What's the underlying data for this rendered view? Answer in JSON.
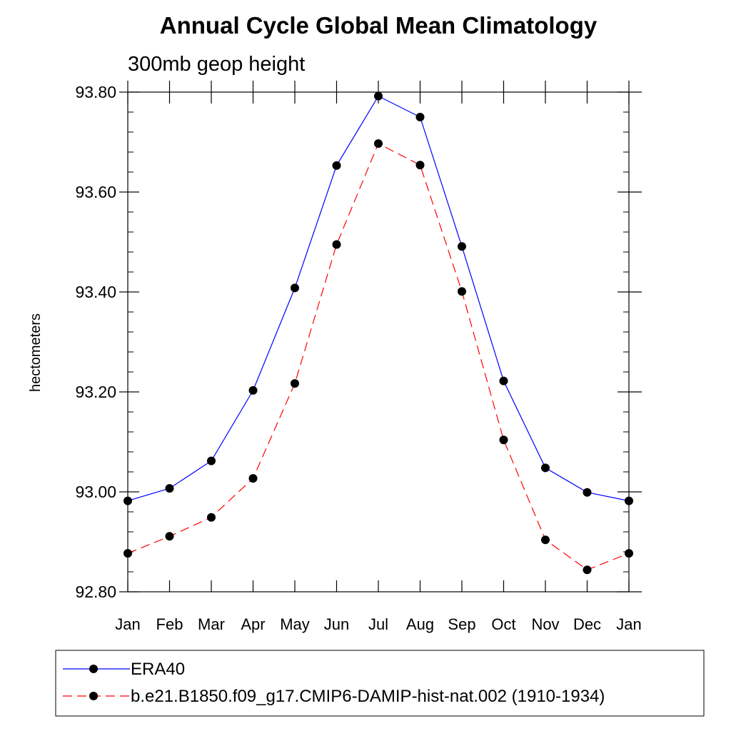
{
  "chart_data": {
    "type": "line",
    "title": "Annual Cycle Global Mean Climatology",
    "subtitle": "300mb geop height",
    "xlabel": "",
    "ylabel": "hectometers",
    "categories": [
      "Jan",
      "Feb",
      "Mar",
      "Apr",
      "May",
      "Jun",
      "Jul",
      "Aug",
      "Sep",
      "Oct",
      "Nov",
      "Dec",
      "Jan"
    ],
    "ylim": [
      92.8,
      93.8
    ],
    "yticks": [
      "92.80",
      "93.00",
      "93.20",
      "93.40",
      "93.60",
      "93.80"
    ],
    "grid": false,
    "legend_position": "bottom",
    "series": [
      {
        "name": "ERA40",
        "color": "#0000ff",
        "dash": "solid",
        "marker": "filled-circle",
        "values": [
          92.982,
          93.007,
          93.062,
          93.203,
          93.408,
          93.653,
          93.792,
          93.75,
          93.491,
          93.222,
          93.048,
          92.999,
          92.982
        ]
      },
      {
        "name": "b.e21.B1850.f09_g17.CMIP6-DAMIP-hist-nat.002 (1910-1934)",
        "color": "#ff0000",
        "dash": "dashed",
        "marker": "filled-circle",
        "values": [
          92.877,
          92.911,
          92.949,
          93.027,
          93.217,
          93.495,
          93.697,
          93.654,
          93.401,
          93.104,
          92.904,
          92.844,
          92.877
        ]
      }
    ]
  }
}
